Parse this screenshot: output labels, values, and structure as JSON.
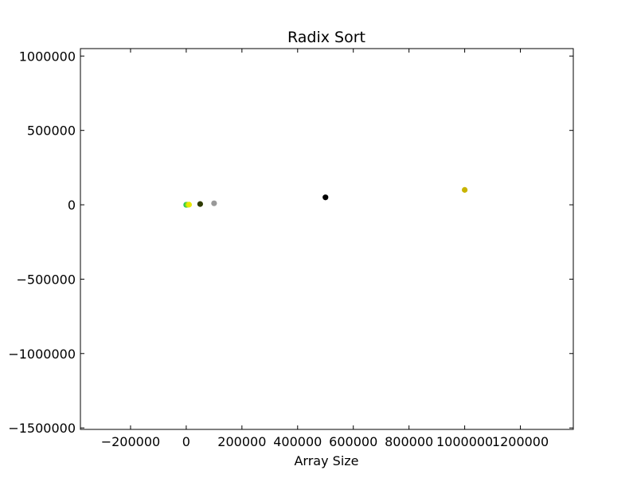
{
  "chart_data": {
    "type": "scatter",
    "title": "Radix Sort",
    "xlabel": "Array Size",
    "ylabel": "",
    "xlim": [
      -380000,
      1390000
    ],
    "ylim": [
      -1510000,
      1050000
    ],
    "grid": false,
    "x_ticks": [
      -200000,
      0,
      200000,
      400000,
      600000,
      800000,
      1000000,
      1200000
    ],
    "x_tick_labels": [
      "−200000",
      "0",
      "200000",
      "400000",
      "600000",
      "800000",
      "1000000",
      "1200000"
    ],
    "y_ticks": [
      1000000,
      500000,
      0,
      -500000,
      -1000000,
      -1500000
    ],
    "y_tick_labels": [
      "1000000",
      "500000",
      "0",
      "−500000",
      "−1000000",
      "−1500000"
    ],
    "points": [
      {
        "x": 100,
        "y": 10,
        "color": "#2ca02c"
      },
      {
        "x": 500,
        "y": 50,
        "color": "#00a0ff"
      },
      {
        "x": 1000,
        "y": 100,
        "color": "#2ecc40"
      },
      {
        "x": 5000,
        "y": 500,
        "color": "#7fdc28"
      },
      {
        "x": 10000,
        "y": 1000,
        "color": "#e8e800"
      },
      {
        "x": 50000,
        "y": 5000,
        "color": "#2e3a00"
      },
      {
        "x": 100000,
        "y": 10000,
        "color": "#999999"
      },
      {
        "x": 500000,
        "y": 50000,
        "color": "#000000"
      },
      {
        "x": 1000000,
        "y": 100000,
        "color": "#c8b400"
      }
    ]
  }
}
